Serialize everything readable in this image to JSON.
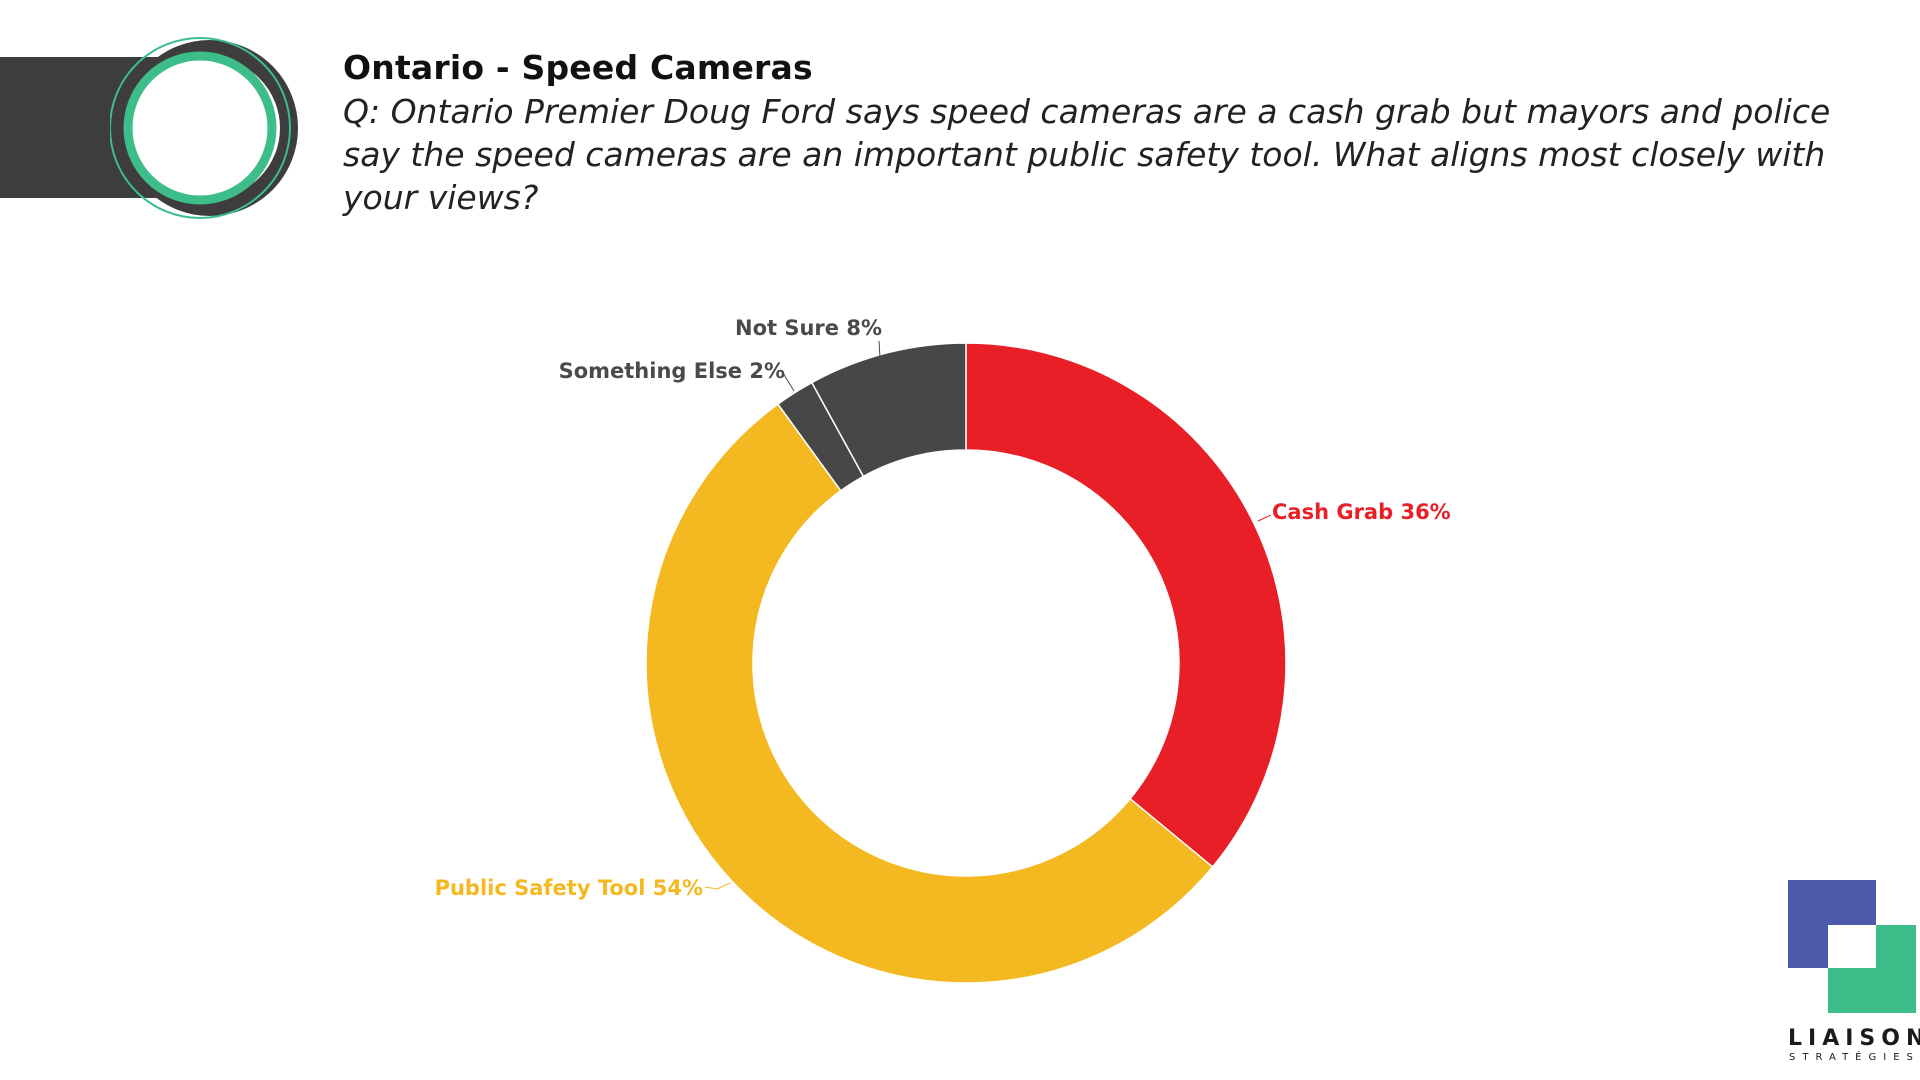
{
  "header": {
    "title": "Ontario - Speed Cameras",
    "question": "Q: Ontario Premier Doug Ford says speed cameras are a cash grab but mayors and police say the speed cameras are an important public safety tool. What aligns most closely with your views?"
  },
  "colors": {
    "header_bar": "#3d3d3d",
    "emblem_dark": "#3d3d3d",
    "emblem_green": "#3dbd8a"
  },
  "chart_data": {
    "type": "pie",
    "variant": "donut",
    "start": "top",
    "direction": "clockwise",
    "slices": [
      {
        "label": "Cash Grab",
        "value": 36,
        "value_label": "36%",
        "color": "#e81f27",
        "label_color": "#e81f27"
      },
      {
        "label": "Public Safety Tool",
        "value": 54,
        "value_label": "54%",
        "color": "#f4b920",
        "label_color": "#f4b920"
      },
      {
        "label": "Something Else",
        "value": 2,
        "value_label": "2%",
        "color": "#474747",
        "label_color": "#4a4a4a"
      },
      {
        "label": "Not Sure",
        "value": 8,
        "value_label": "8%",
        "color": "#474747",
        "label_color": "#4a4a4a"
      }
    ]
  },
  "logo": {
    "name": "LIAISON",
    "subtitle": "STRATÉGIES",
    "colors": [
      "#4d5aac",
      "#3dbd8a"
    ]
  }
}
